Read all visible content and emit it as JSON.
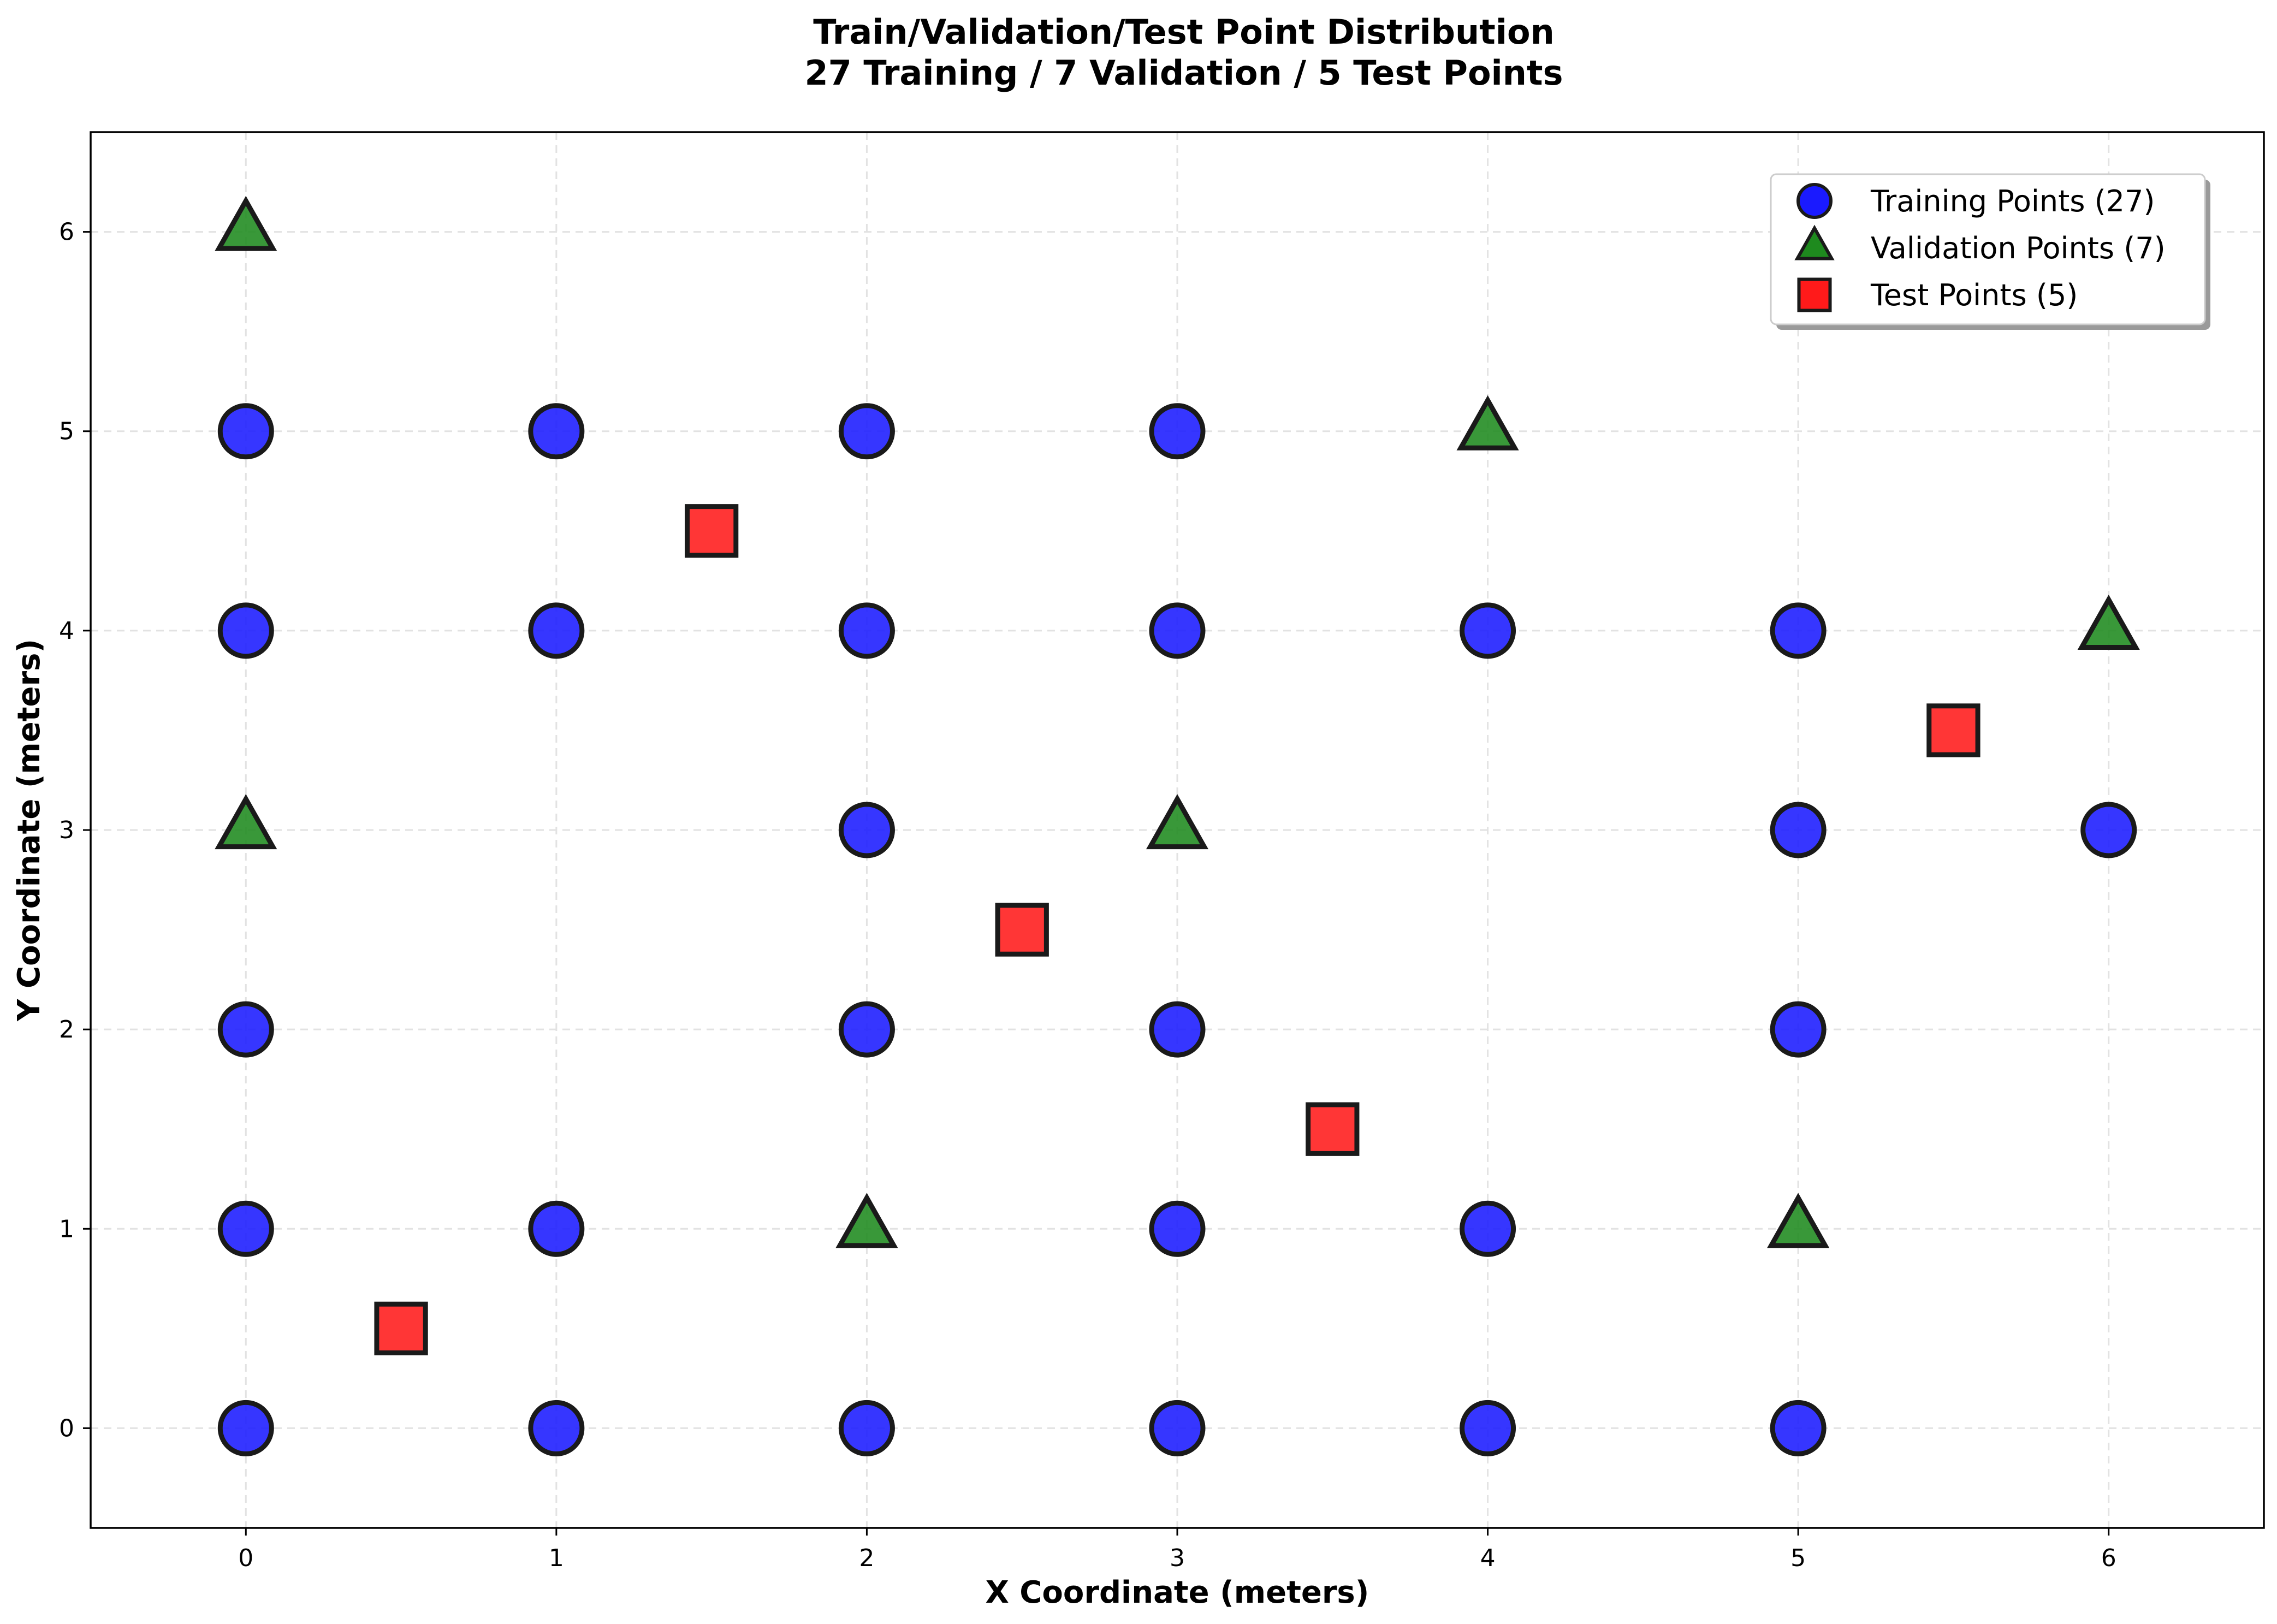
{
  "chart_data": {
    "type": "scatter",
    "title": "Train/Validation/Test Point Distribution",
    "subtitle": "27 Training / 7 Validation / 5 Test Points",
    "xlabel": "X Coordinate (meters)",
    "ylabel": "Y Coordinate (meters)",
    "xlim": [
      -0.5,
      6.5
    ],
    "ylim": [
      -0.5,
      6.5
    ],
    "xticks": [
      0,
      1,
      2,
      3,
      4,
      5,
      6
    ],
    "yticks": [
      0,
      1,
      2,
      3,
      4,
      5,
      6
    ],
    "grid": true,
    "legend_position": "top-right",
    "series": [
      {
        "name": "Training Points (27)",
        "marker": "circle",
        "color": "#1a1aff",
        "points": [
          [
            0,
            0
          ],
          [
            1,
            0
          ],
          [
            2,
            0
          ],
          [
            3,
            0
          ],
          [
            4,
            0
          ],
          [
            5,
            0
          ],
          [
            0,
            1
          ],
          [
            1,
            1
          ],
          [
            3,
            1
          ],
          [
            4,
            1
          ],
          [
            0,
            2
          ],
          [
            2,
            2
          ],
          [
            3,
            2
          ],
          [
            5,
            2
          ],
          [
            2,
            3
          ],
          [
            5,
            3
          ],
          [
            6,
            3
          ],
          [
            0,
            4
          ],
          [
            1,
            4
          ],
          [
            2,
            4
          ],
          [
            3,
            4
          ],
          [
            4,
            4
          ],
          [
            5,
            4
          ],
          [
            0,
            5
          ],
          [
            1,
            5
          ],
          [
            2,
            5
          ],
          [
            3,
            5
          ]
        ]
      },
      {
        "name": "Validation Points (7)",
        "marker": "triangle",
        "color": "#1e8a1e",
        "points": [
          [
            0,
            6
          ],
          [
            4,
            5
          ],
          [
            6,
            4
          ],
          [
            0,
            3
          ],
          [
            3,
            3
          ],
          [
            2,
            1
          ],
          [
            5,
            1
          ]
        ]
      },
      {
        "name": "Test Points (5)",
        "marker": "square",
        "color": "#ff1a1a",
        "points": [
          [
            1.5,
            4.5
          ],
          [
            5.5,
            3.5
          ],
          [
            2.5,
            2.5
          ],
          [
            3.5,
            1.5
          ],
          [
            0.5,
            0.5
          ]
        ]
      }
    ]
  }
}
